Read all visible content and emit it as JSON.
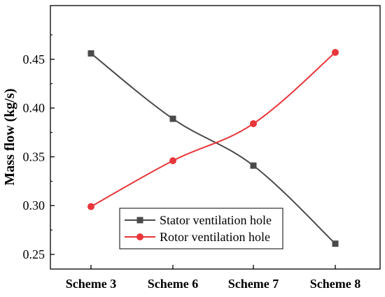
{
  "chart_data": {
    "type": "line",
    "title": "",
    "xlabel": "",
    "ylabel": "Mass flow (kg/s)",
    "categories": [
      "Scheme 3",
      "Scheme 6",
      "Scheme 7",
      "Scheme 8"
    ],
    "ylim": [
      0.235,
      0.505
    ],
    "yticks": [
      0.25,
      0.3,
      0.35,
      0.4,
      0.45
    ],
    "ytick_labels": [
      "0.25",
      "0.30",
      "0.35",
      "0.40",
      "0.45"
    ],
    "grid": false,
    "legend_position": "bottom-center",
    "series": [
      {
        "name": "Stator ventilation hole",
        "values": [
          0.456,
          0.389,
          0.341,
          0.261
        ],
        "color": "#4a4a4a",
        "marker": "square"
      },
      {
        "name": "Rotor ventilation hole",
        "values": [
          0.299,
          0.346,
          0.384,
          0.457
        ],
        "color": "#e8363a",
        "marker": "circle"
      }
    ]
  }
}
